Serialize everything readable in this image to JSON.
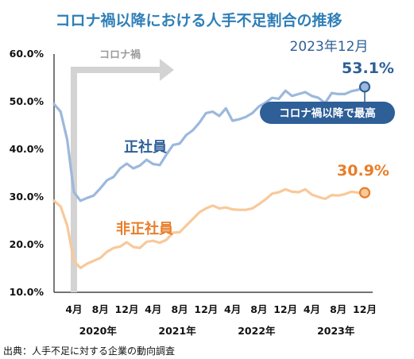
{
  "chart_data": {
    "type": "line",
    "title": "コロナ禍以降における人手不足割合の推移",
    "source": "出典：人手不足に対する企業の動向調査",
    "y_ticks": [
      "10.0%",
      "20.0%",
      "30.0%",
      "40.0%",
      "50.0%",
      "60.0%"
    ],
    "ylim": [
      10,
      60
    ],
    "x_start": "2020-01",
    "x_end": "2023-12",
    "x_tick_labels": [
      {
        "month": "2020-04",
        "label": "4月"
      },
      {
        "month": "2020-08",
        "label": "8月"
      },
      {
        "month": "2020-12",
        "label": "12月"
      },
      {
        "month": "2021-04",
        "label": "4月"
      },
      {
        "month": "2021-08",
        "label": "8月"
      },
      {
        "month": "2021-12",
        "label": "12月"
      },
      {
        "month": "2022-04",
        "label": "4月"
      },
      {
        "month": "2022-08",
        "label": "8月"
      },
      {
        "month": "2022-12",
        "label": "12月"
      },
      {
        "month": "2023-04",
        "label": "4月"
      },
      {
        "month": "2023-08",
        "label": "8月"
      },
      {
        "month": "2023-12",
        "label": "12月"
      }
    ],
    "year_labels": [
      {
        "month": "2020-08",
        "label": "2020年"
      },
      {
        "month": "2021-08",
        "label": "2021年"
      },
      {
        "month": "2022-08",
        "label": "2022年"
      },
      {
        "month": "2023-08",
        "label": "2023年"
      }
    ],
    "annotation": {
      "label": "コロナ禍",
      "start_month": "2020-04"
    },
    "x_months": [
      "2020-01",
      "2020-02",
      "2020-03",
      "2020-04",
      "2020-05",
      "2020-06",
      "2020-07",
      "2020-08",
      "2020-09",
      "2020-10",
      "2020-11",
      "2020-12",
      "2021-01",
      "2021-02",
      "2021-03",
      "2021-04",
      "2021-05",
      "2021-06",
      "2021-07",
      "2021-08",
      "2021-09",
      "2021-10",
      "2021-11",
      "2021-12",
      "2022-01",
      "2022-02",
      "2022-03",
      "2022-04",
      "2022-05",
      "2022-06",
      "2022-07",
      "2022-08",
      "2022-09",
      "2022-10",
      "2022-11",
      "2022-12",
      "2023-01",
      "2023-02",
      "2023-03",
      "2023-04",
      "2023-05",
      "2023-06",
      "2023-07",
      "2023-08",
      "2023-09",
      "2023-10",
      "2023-11",
      "2023-12"
    ],
    "series": [
      {
        "name": "正社員",
        "color": "#9cb8dc",
        "label_color": "#2e5f97",
        "values": [
          49.5,
          47.9,
          42.0,
          31.0,
          29.2,
          29.8,
          30.3,
          31.8,
          33.5,
          34.2,
          36.0,
          37.0,
          36.0,
          36.6,
          37.8,
          36.9,
          36.7,
          38.9,
          40.9,
          41.2,
          43.0,
          44.0,
          45.6,
          47.6,
          47.9,
          47.0,
          48.6,
          46.0,
          46.3,
          46.8,
          47.6,
          49.0,
          49.8,
          50.8,
          50.6,
          52.3,
          51.2,
          51.6,
          52.0,
          51.2,
          50.8,
          49.7,
          51.8,
          51.6,
          51.6,
          52.2,
          52.5,
          53.1
        ]
      },
      {
        "name": "非正社員",
        "color": "#f8c99a",
        "label_color": "#e87d28",
        "values": [
          29.2,
          28.0,
          24.0,
          16.5,
          15.1,
          16.0,
          16.6,
          17.2,
          18.5,
          19.3,
          19.6,
          20.5,
          19.5,
          19.3,
          20.6,
          20.8,
          20.4,
          21.0,
          22.5,
          22.6,
          24.0,
          25.4,
          26.8,
          27.6,
          28.2,
          27.6,
          27.8,
          27.4,
          27.3,
          27.3,
          27.6,
          28.5,
          29.5,
          30.7,
          31.0,
          31.6,
          31.1,
          31.0,
          31.6,
          30.5,
          30.0,
          29.6,
          30.4,
          30.3,
          30.6,
          31.1,
          30.9,
          30.9
        ]
      }
    ],
    "callouts": {
      "end_date_label": "2023年12月",
      "seishain_end_value": "53.1%",
      "seishain_note": "コロナ禍以降で最高",
      "hiseishain_end_value": "30.9%"
    },
    "grid": false,
    "legend": "none"
  }
}
